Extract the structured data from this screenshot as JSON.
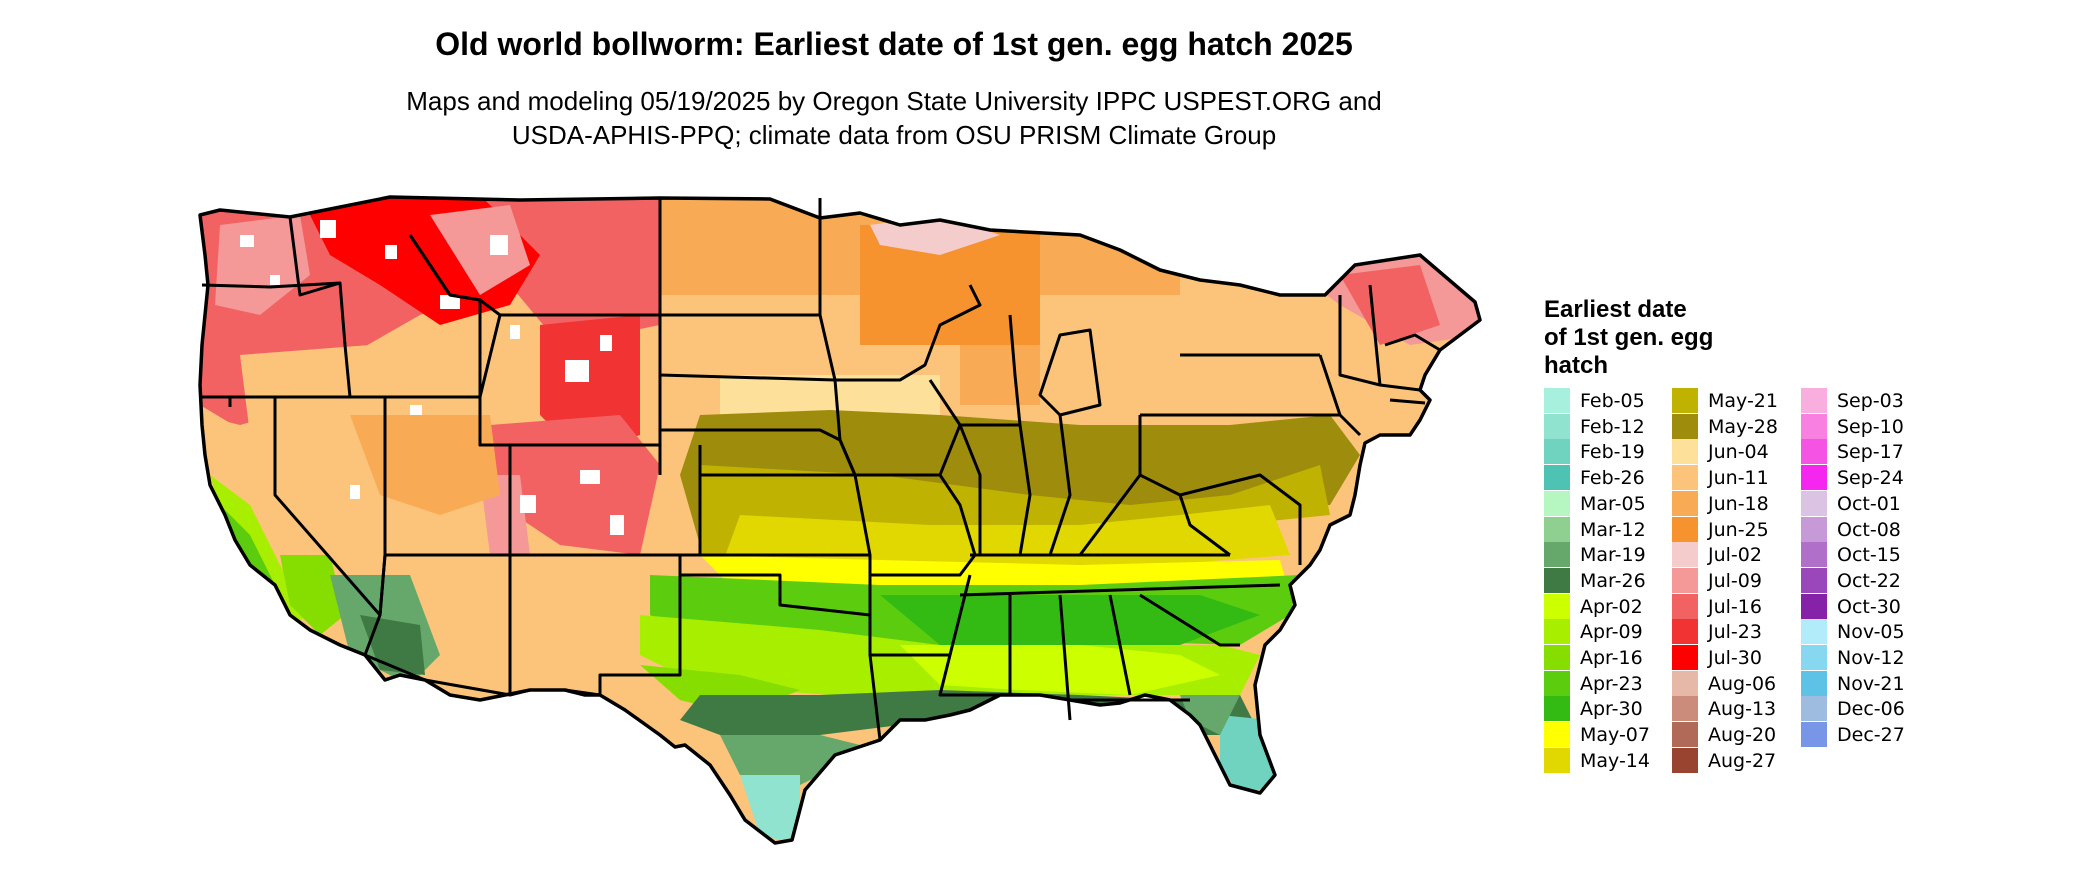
{
  "title": "Old world bollworm: Earliest date of 1st gen. egg hatch 2025",
  "subtitle_line1": "Maps and modeling 05/19/2025 by Oregon State University IPPC USPEST.ORG and",
  "subtitle_line2": "USDA-APHIS-PPQ; climate data from OSU PRISM Climate Group",
  "legend": {
    "title": "Earliest date\nof 1st gen. egg\nhatch",
    "items": [
      {
        "label": "Feb-05",
        "color": "#a8f0de"
      },
      {
        "label": "Feb-12",
        "color": "#8fe3cf"
      },
      {
        "label": "Feb-19",
        "color": "#6fd3c0"
      },
      {
        "label": "Feb-26",
        "color": "#4fc3b3"
      },
      {
        "label": "Mar-05",
        "color": "#b6f7c1"
      },
      {
        "label": "Mar-12",
        "color": "#8fcf8f"
      },
      {
        "label": "Mar-19",
        "color": "#66a86b"
      },
      {
        "label": "Mar-26",
        "color": "#3f7a45"
      },
      {
        "label": "Apr-02",
        "color": "#ccff00"
      },
      {
        "label": "Apr-09",
        "color": "#a8ee00"
      },
      {
        "label": "Apr-16",
        "color": "#86dd00"
      },
      {
        "label": "Apr-23",
        "color": "#5ccc0e"
      },
      {
        "label": "Apr-30",
        "color": "#33bb13"
      },
      {
        "label": "May-07",
        "color": "#ffff00"
      },
      {
        "label": "May-14",
        "color": "#e0d800"
      },
      {
        "label": "May-21",
        "color": "#bfb200"
      },
      {
        "label": "May-28",
        "color": "#9e8c0c"
      },
      {
        "label": "Jun-04",
        "color": "#fde09a"
      },
      {
        "label": "Jun-11",
        "color": "#fbc47a"
      },
      {
        "label": "Jun-18",
        "color": "#f9aa55"
      },
      {
        "label": "Jun-25",
        "color": "#f7932f"
      },
      {
        "label": "Jul-02",
        "color": "#f4cccc"
      },
      {
        "label": "Jul-09",
        "color": "#f49898"
      },
      {
        "label": "Jul-16",
        "color": "#f26262"
      },
      {
        "label": "Jul-23",
        "color": "#f13333"
      },
      {
        "label": "Jul-30",
        "color": "#ff0000"
      },
      {
        "label": "Aug-06",
        "color": "#e5b8a8"
      },
      {
        "label": "Aug-13",
        "color": "#cc8c7c"
      },
      {
        "label": "Aug-20",
        "color": "#b26a58"
      },
      {
        "label": "Aug-27",
        "color": "#984430"
      },
      {
        "label": "Sep-03",
        "color": "#f9aee0"
      },
      {
        "label": "Sep-10",
        "color": "#f780e0"
      },
      {
        "label": "Sep-17",
        "color": "#f553e3"
      },
      {
        "label": "Sep-24",
        "color": "#f526f0"
      },
      {
        "label": "Oct-01",
        "color": "#dbc3e3"
      },
      {
        "label": "Oct-08",
        "color": "#c59ad6"
      },
      {
        "label": "Oct-15",
        "color": "#b070c9"
      },
      {
        "label": "Oct-22",
        "color": "#9b47bc"
      },
      {
        "label": "Oct-30",
        "color": "#8622a8"
      },
      {
        "label": "Nov-05",
        "color": "#b2ebfa"
      },
      {
        "label": "Nov-12",
        "color": "#88d7f0"
      },
      {
        "label": "Nov-21",
        "color": "#5ec2e6"
      },
      {
        "label": "Dec-06",
        "color": "#9dbce0"
      },
      {
        "label": "Dec-27",
        "color": "#7896e8"
      }
    ]
  }
}
